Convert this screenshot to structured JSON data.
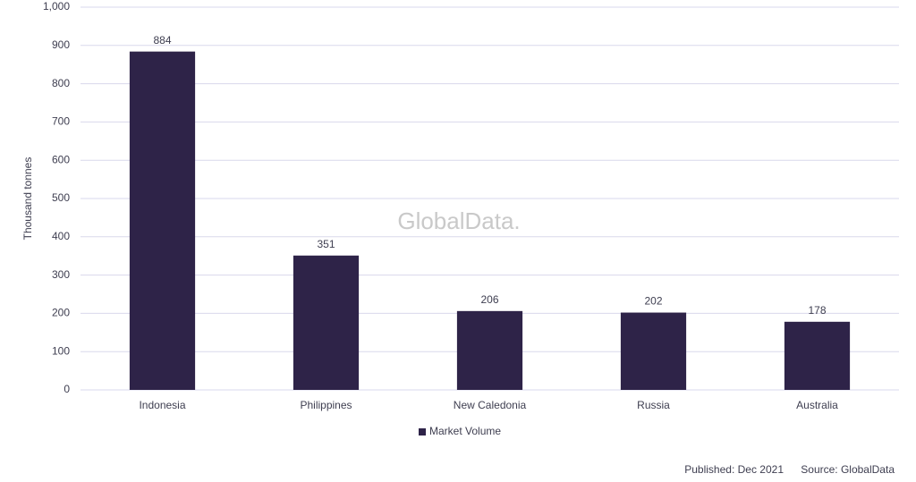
{
  "chart_data": {
    "type": "bar",
    "y_label": "Thousand tonnes",
    "categories": [
      "Indonesia",
      "Philippines",
      "New Caledonia",
      "Russia",
      "Australia"
    ],
    "series": [
      {
        "name": "Market Volume",
        "color": "#2e2348",
        "values": [
          884,
          351,
          206,
          202,
          178
        ]
      }
    ],
    "ylim": [
      0,
      1000
    ],
    "yticks": [
      0,
      100,
      200,
      300,
      400,
      500,
      600,
      700,
      800,
      900,
      {
        "value": 1000,
        "label": "1,000"
      }
    ],
    "grid": true,
    "legend": "bottom",
    "watermark": "GlobalData.",
    "published": "Published: Dec 2021",
    "source": "Source: GlobalData"
  }
}
